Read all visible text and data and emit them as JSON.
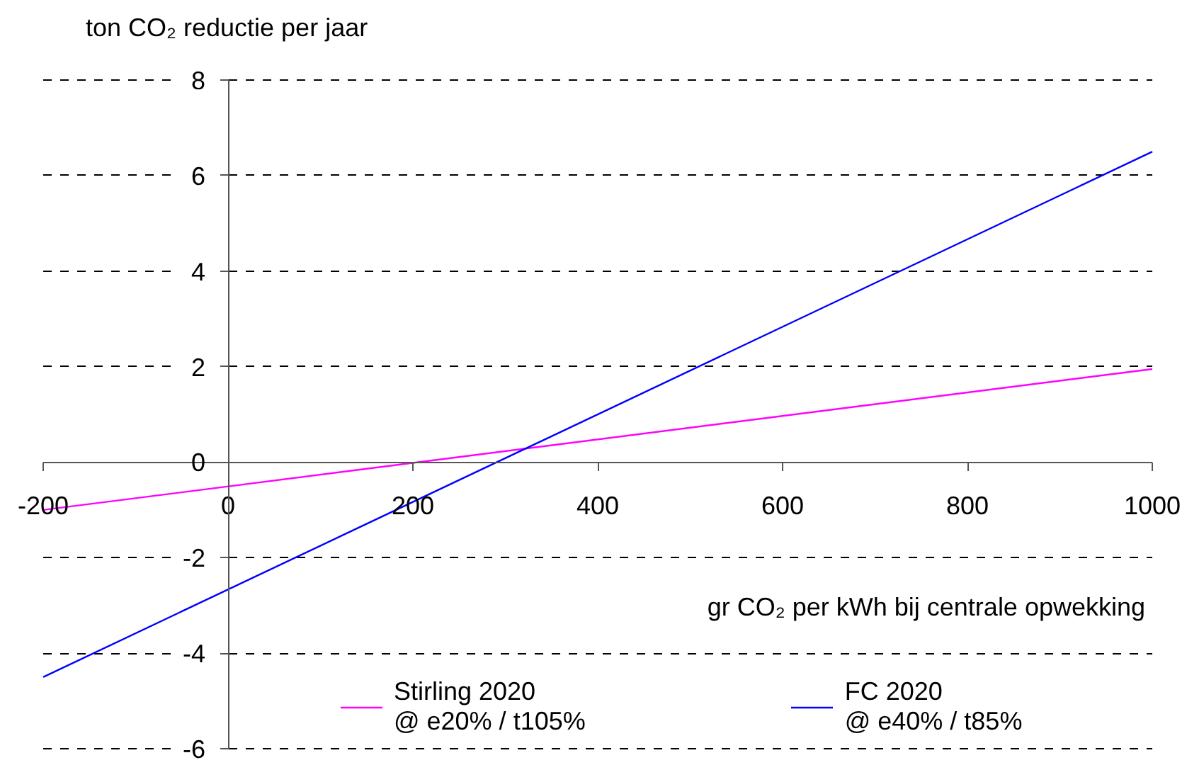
{
  "chart_data": {
    "type": "line",
    "xlabel": "gr CO₂ per kWh bij centrale opwekking",
    "ylabel": "ton CO₂ reductie per jaar",
    "x": [
      -200,
      1000
    ],
    "series": [
      {
        "name": "Stirling 2020\n@ e20% / t105%",
        "color": "#ff00ff",
        "values": [
          -1.0,
          1.95
        ]
      },
      {
        "name": "FC 2020\n@ e40% / t85%",
        "color": "#0000ff",
        "values": [
          -4.5,
          6.5
        ]
      }
    ],
    "xlim": [
      -200,
      1000
    ],
    "xticks": [
      -200,
      0,
      200,
      400,
      600,
      800,
      1000
    ],
    "ylim": [
      -6,
      8
    ],
    "yticks": [
      -6,
      -4,
      -2,
      0,
      2,
      4,
      6,
      8
    ],
    "grid": "y",
    "legend": "bottom"
  }
}
